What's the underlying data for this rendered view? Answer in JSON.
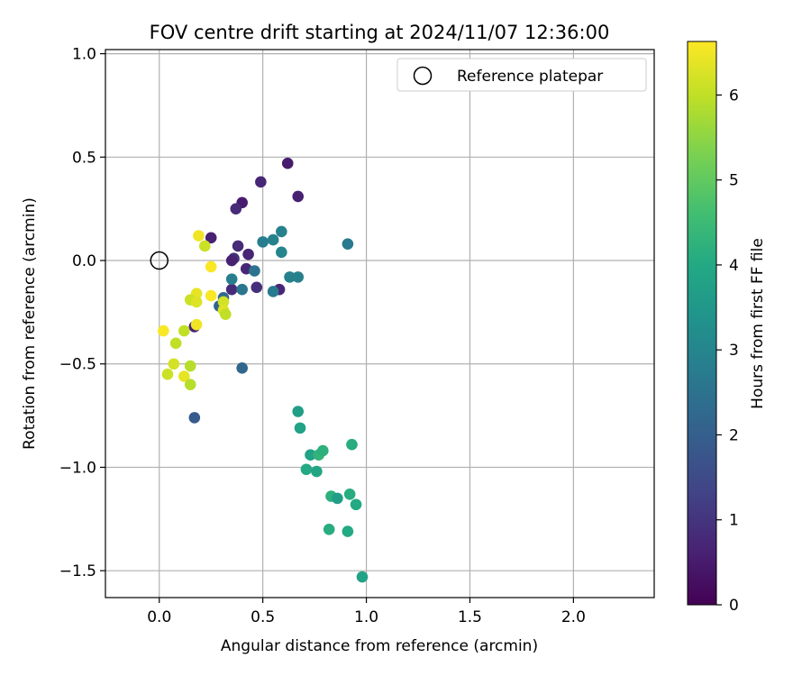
{
  "chart_data": {
    "type": "scatter",
    "title": "FOV centre drift starting at 2024/11/07 12:36:00",
    "xlabel": "Angular distance from reference (arcmin)",
    "ylabel": "Rotation from reference (arcmin)",
    "xlim": [
      -0.26,
      2.39
    ],
    "ylim": [
      -1.63,
      1.02
    ],
    "xticks": [
      0.0,
      0.5,
      1.0,
      1.5,
      2.0
    ],
    "xtick_labels": [
      "0.0",
      "0.5",
      "1.0",
      "1.5",
      "2.0"
    ],
    "yticks": [
      1.0,
      0.5,
      0.0,
      -0.5,
      -1.0,
      -1.5
    ],
    "ytick_labels": [
      "1.0",
      "0.5",
      "0.0",
      "−0.5",
      "−1.0",
      "−1.5"
    ],
    "grid": true,
    "legend": {
      "position": "top-right",
      "entries": [
        {
          "label": "Reference platepar",
          "marker": "open-circle"
        }
      ]
    },
    "reference_point": {
      "x": 0.0,
      "y": 0.0
    },
    "colorbar": {
      "label": "Hours from first FF file",
      "min": 0,
      "max": 6.63,
      "colormap": "viridis",
      "ticks": [
        0,
        1,
        2,
        3,
        4,
        5,
        6
      ],
      "tick_labels": [
        "0",
        "1",
        "2",
        "3",
        "4",
        "5",
        "6"
      ]
    },
    "points": [
      {
        "x": 0.62,
        "y": 0.47,
        "c": 0.5
      },
      {
        "x": 0.49,
        "y": 0.38,
        "c": 0.7
      },
      {
        "x": 0.67,
        "y": 0.31,
        "c": 0.6
      },
      {
        "x": 0.4,
        "y": 0.28,
        "c": 0.5
      },
      {
        "x": 0.37,
        "y": 0.25,
        "c": 0.8
      },
      {
        "x": 0.25,
        "y": 0.11,
        "c": 0.6
      },
      {
        "x": 0.38,
        "y": 0.07,
        "c": 0.8
      },
      {
        "x": 0.43,
        "y": 0.03,
        "c": 0.7
      },
      {
        "x": 0.36,
        "y": 0.01,
        "c": 0.9
      },
      {
        "x": 0.35,
        "y": 0.0,
        "c": 0.6
      },
      {
        "x": 0.42,
        "y": -0.04,
        "c": 0.7
      },
      {
        "x": 0.47,
        "y": -0.13,
        "c": 0.9
      },
      {
        "x": 0.58,
        "y": -0.14,
        "c": 0.7
      },
      {
        "x": 0.35,
        "y": -0.14,
        "c": 0.8
      },
      {
        "x": 0.17,
        "y": -0.32,
        "c": 0.6
      },
      {
        "x": 0.59,
        "y": 0.14,
        "c": 2.9
      },
      {
        "x": 0.5,
        "y": 0.09,
        "c": 2.8
      },
      {
        "x": 0.55,
        "y": 0.1,
        "c": 2.9
      },
      {
        "x": 0.59,
        "y": 0.04,
        "c": 3.0
      },
      {
        "x": 0.91,
        "y": 0.08,
        "c": 2.7
      },
      {
        "x": 0.46,
        "y": -0.05,
        "c": 2.5
      },
      {
        "x": 0.63,
        "y": -0.08,
        "c": 2.9
      },
      {
        "x": 0.67,
        "y": -0.08,
        "c": 2.9
      },
      {
        "x": 0.35,
        "y": -0.09,
        "c": 2.8
      },
      {
        "x": 0.55,
        "y": -0.15,
        "c": 2.7
      },
      {
        "x": 0.4,
        "y": -0.14,
        "c": 2.6
      },
      {
        "x": 0.31,
        "y": -0.18,
        "c": 2.3
      },
      {
        "x": 0.29,
        "y": -0.22,
        "c": 2.1
      },
      {
        "x": 0.4,
        "y": -0.52,
        "c": 2.2
      },
      {
        "x": 0.17,
        "y": -0.76,
        "c": 1.9
      },
      {
        "x": 0.67,
        "y": -0.73,
        "c": 3.7
      },
      {
        "x": 0.68,
        "y": -0.81,
        "c": 3.8
      },
      {
        "x": 0.93,
        "y": -0.89,
        "c": 4.1
      },
      {
        "x": 0.73,
        "y": -0.94,
        "c": 3.8
      },
      {
        "x": 0.77,
        "y": -0.94,
        "c": 4.3
      },
      {
        "x": 0.79,
        "y": -0.92,
        "c": 4.2
      },
      {
        "x": 0.71,
        "y": -1.01,
        "c": 4.0
      },
      {
        "x": 0.76,
        "y": -1.02,
        "c": 3.9
      },
      {
        "x": 0.83,
        "y": -1.14,
        "c": 4.2
      },
      {
        "x": 0.86,
        "y": -1.15,
        "c": 3.7
      },
      {
        "x": 0.92,
        "y": -1.13,
        "c": 4.1
      },
      {
        "x": 0.95,
        "y": -1.18,
        "c": 4.0
      },
      {
        "x": 0.82,
        "y": -1.3,
        "c": 4.1
      },
      {
        "x": 0.91,
        "y": -1.31,
        "c": 4.0
      },
      {
        "x": 0.98,
        "y": -1.53,
        "c": 3.8
      },
      {
        "x": 0.19,
        "y": 0.12,
        "c": 6.5
      },
      {
        "x": 0.22,
        "y": 0.07,
        "c": 6.1
      },
      {
        "x": 0.25,
        "y": -0.03,
        "c": 6.6
      },
      {
        "x": 0.25,
        "y": -0.17,
        "c": 6.6
      },
      {
        "x": 0.18,
        "y": -0.16,
        "c": 6.4
      },
      {
        "x": 0.15,
        "y": -0.19,
        "c": 6.1
      },
      {
        "x": 0.18,
        "y": -0.2,
        "c": 6.3
      },
      {
        "x": 0.31,
        "y": -0.2,
        "c": 6.2
      },
      {
        "x": 0.31,
        "y": -0.24,
        "c": 6.3
      },
      {
        "x": 0.32,
        "y": -0.26,
        "c": 6.0
      },
      {
        "x": 0.18,
        "y": -0.31,
        "c": 6.5
      },
      {
        "x": 0.12,
        "y": -0.34,
        "c": 6.0
      },
      {
        "x": 0.02,
        "y": -0.34,
        "c": 6.6
      },
      {
        "x": 0.08,
        "y": -0.4,
        "c": 6.0
      },
      {
        "x": 0.07,
        "y": -0.5,
        "c": 6.2
      },
      {
        "x": 0.15,
        "y": -0.51,
        "c": 5.9
      },
      {
        "x": 0.04,
        "y": -0.55,
        "c": 6.1
      },
      {
        "x": 0.12,
        "y": -0.56,
        "c": 6.4
      },
      {
        "x": 0.15,
        "y": -0.6,
        "c": 5.9
      }
    ]
  }
}
